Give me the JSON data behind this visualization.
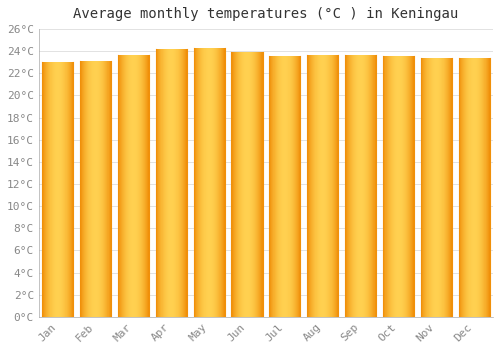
{
  "title": "Average monthly temperatures (°C ) in Keningau",
  "months": [
    "Jan",
    "Feb",
    "Mar",
    "Apr",
    "May",
    "Jun",
    "Jul",
    "Aug",
    "Sep",
    "Oct",
    "Nov",
    "Dec"
  ],
  "values": [
    23.0,
    23.1,
    23.7,
    24.2,
    24.3,
    23.9,
    23.6,
    23.7,
    23.7,
    23.6,
    23.4,
    23.4
  ],
  "bar_color_center": "#FFD050",
  "bar_color_edge": "#F0900A",
  "background_color": "#FFFFFF",
  "plot_bg_color": "#FFFFFF",
  "grid_color": "#DDDDDD",
  "ylim": [
    0,
    26
  ],
  "ytick_step": 2,
  "title_fontsize": 10,
  "tick_fontsize": 8,
  "tick_color": "#888888"
}
